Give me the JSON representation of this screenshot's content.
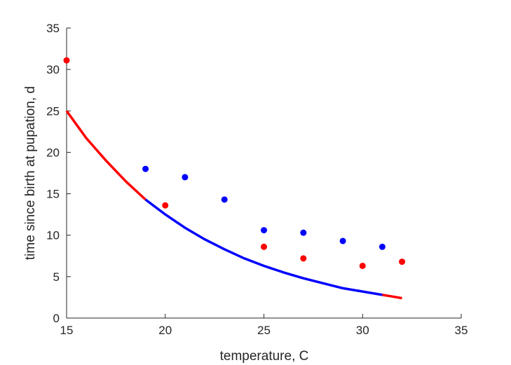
{
  "chart_data": {
    "type": "scatter",
    "title": "",
    "xlabel": "temperature, C",
    "ylabel": "time since birth at pupation, d",
    "xlim": [
      15,
      35
    ],
    "ylim": [
      0,
      35
    ],
    "xticks": [
      15,
      20,
      25,
      30,
      35
    ],
    "yticks": [
      0,
      5,
      10,
      15,
      20,
      25,
      30,
      35
    ],
    "grid": false,
    "box": false,
    "series": [
      {
        "kind": "points",
        "color": "#0000ff",
        "points": [
          [
            19,
            18.0
          ],
          [
            21,
            17.0
          ],
          [
            23,
            14.3
          ],
          [
            25,
            10.6
          ],
          [
            27,
            10.3
          ],
          [
            29,
            9.3
          ],
          [
            31,
            8.6
          ]
        ]
      },
      {
        "kind": "points",
        "color": "#ff0000",
        "points": [
          [
            15,
            31.1
          ],
          [
            20,
            13.6
          ],
          [
            25,
            8.6
          ],
          [
            27,
            7.2
          ],
          [
            30,
            6.3
          ],
          [
            32,
            6.8
          ]
        ]
      },
      {
        "kind": "line",
        "color": "#ff0000",
        "points": [
          [
            15,
            25.0
          ],
          [
            16,
            21.7
          ],
          [
            17,
            19.0
          ],
          [
            18,
            16.5
          ],
          [
            19,
            14.3
          ]
        ]
      },
      {
        "kind": "line",
        "color": "#0000ff",
        "points": [
          [
            19,
            14.3
          ],
          [
            20,
            12.5
          ],
          [
            21,
            10.9
          ],
          [
            22,
            9.5
          ],
          [
            23,
            8.3
          ],
          [
            24,
            7.2
          ],
          [
            25,
            6.3
          ],
          [
            26,
            5.5
          ],
          [
            27,
            4.8
          ],
          [
            28,
            4.2
          ],
          [
            29,
            3.6
          ],
          [
            30,
            3.2
          ],
          [
            31,
            2.8
          ]
        ]
      },
      {
        "kind": "line",
        "color": "#ff0000",
        "points": [
          [
            31,
            2.8
          ],
          [
            31.5,
            2.6
          ],
          [
            32,
            2.4
          ]
        ]
      }
    ]
  }
}
